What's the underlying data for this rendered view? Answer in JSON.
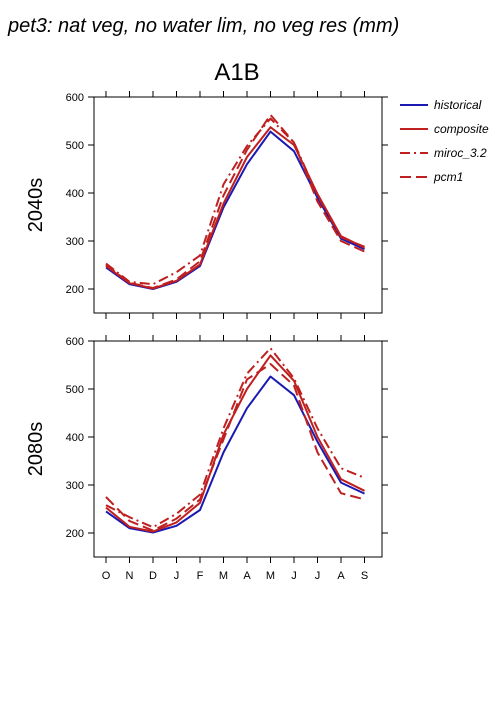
{
  "figure": {
    "title": "pet3: nat veg, no water lim, no veg res (mm)",
    "scenario": "A1B"
  },
  "legend": {
    "items": [
      {
        "name": "historical",
        "color": "#1a1ab3",
        "dash": "solid"
      },
      {
        "name": "composite",
        "color": "#bf1f1f",
        "dash": "solid"
      },
      {
        "name": "miroc_3.2",
        "color": "#bf1f1f",
        "dash": "dashdot"
      },
      {
        "name": "pcm1",
        "color": "#bf1f1f",
        "dash": "dash"
      }
    ]
  },
  "chart_data": [
    {
      "type": "line",
      "ylabel": "2040s",
      "categories": [
        "O",
        "N",
        "D",
        "J",
        "F",
        "M",
        "A",
        "M",
        "J",
        "J",
        "A",
        "S"
      ],
      "ylim": [
        150,
        600
      ],
      "yticks": [
        200,
        300,
        400,
        500,
        600
      ],
      "series": [
        {
          "name": "historical",
          "values": [
            245,
            210,
            200,
            215,
            248,
            370,
            460,
            528,
            487,
            390,
            305,
            283
          ]
        },
        {
          "name": "composite",
          "values": [
            248,
            212,
            201,
            217,
            251,
            378,
            475,
            537,
            500,
            398,
            310,
            286
          ]
        },
        {
          "name": "miroc_3.2",
          "values": [
            253,
            215,
            210,
            235,
            270,
            418,
            498,
            555,
            505,
            395,
            308,
            288
          ]
        },
        {
          "name": "pcm1",
          "values": [
            250,
            213,
            202,
            220,
            258,
            395,
            490,
            563,
            505,
            382,
            300,
            278
          ]
        }
      ]
    },
    {
      "type": "line",
      "ylabel": "2080s",
      "categories": [
        "O",
        "N",
        "D",
        "J",
        "F",
        "M",
        "A",
        "M",
        "J",
        "J",
        "A",
        "S"
      ],
      "ylim": [
        150,
        600
      ],
      "yticks": [
        200,
        300,
        400,
        500,
        600
      ],
      "series": [
        {
          "name": "historical",
          "values": [
            245,
            210,
            201,
            215,
            248,
            368,
            460,
            526,
            487,
            390,
            305,
            282
          ]
        },
        {
          "name": "composite",
          "values": [
            253,
            213,
            203,
            222,
            263,
            405,
            500,
            570,
            517,
            400,
            312,
            288
          ]
        },
        {
          "name": "miroc_3.2",
          "values": [
            258,
            233,
            212,
            240,
            280,
            418,
            532,
            585,
            522,
            418,
            335,
            315
          ]
        },
        {
          "name": "pcm1",
          "values": [
            275,
            225,
            205,
            230,
            270,
            395,
            520,
            552,
            507,
            368,
            283,
            270
          ]
        }
      ]
    }
  ]
}
